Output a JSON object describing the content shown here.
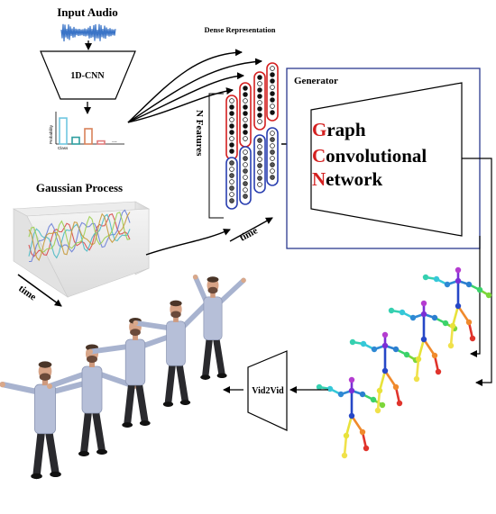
{
  "input_audio": {
    "title": "Input Audio",
    "cnn_label": "1D-CNN",
    "chart_ylabel": "Probability",
    "chart_xlabel": "Class",
    "chart_ellipsis": "..."
  },
  "gaussian_process": {
    "title": "Gaussian Process",
    "time_label": "time"
  },
  "dense_representation": {
    "title": "Dense Representation",
    "features_label": "N Features",
    "time_label": "time"
  },
  "generator": {
    "title": "Generator",
    "gcn_lines": [
      {
        "initial": "G",
        "rest": "raph"
      },
      {
        "initial": "C",
        "rest": "onvolutional"
      },
      {
        "initial": "N",
        "rest": "etwork"
      }
    ]
  },
  "vid2vid": {
    "label": "Vid2Vid"
  },
  "colors": {
    "accent_red": "#d42020",
    "frame_blue": "#2b3a8f",
    "column_red": "#d42020",
    "column_blue": "#2a3fb0",
    "waveform": "#3a74c7",
    "bar_colors": [
      "#6fc7e0",
      "#2f9ea0",
      "#d9825a",
      "#e07c7c"
    ]
  },
  "audio_class_probabilities": [
    0.85,
    0.22,
    0.5,
    0.1
  ],
  "skeleton_pose_count": 4,
  "person_render_count": 5
}
